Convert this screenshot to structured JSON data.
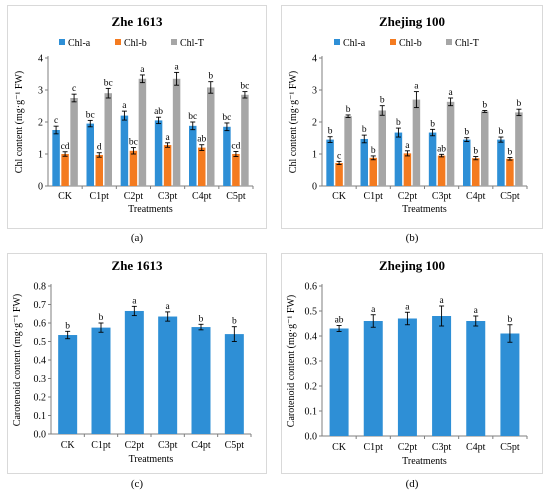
{
  "captions": [
    "(a)",
    "(b)",
    "(c)",
    "(d)"
  ],
  "colors": {
    "chl_a": "#2e8fd6",
    "chl_b": "#f47b20",
    "chl_t": "#a6a6a6",
    "axis": "#7f7f7f",
    "error": "#000000"
  },
  "chart_data": [
    {
      "type": "bar",
      "title": "Zhe 1613",
      "xlabel": "Treatments",
      "ylabel": "Chl content (mg·g⁻¹ FW)",
      "ylim": [
        0,
        4
      ],
      "yticks": [
        "0",
        "1",
        "2",
        "3",
        "4"
      ],
      "grid": false,
      "legend": "top",
      "categories": [
        "CK",
        "C1pt",
        "C2pt",
        "C3pt",
        "C4pt",
        "C5pt"
      ],
      "series": [
        {
          "name": "Chl-a",
          "values": [
            1.75,
            1.95,
            2.2,
            2.05,
            1.88,
            1.85
          ],
          "errors": [
            0.12,
            0.1,
            0.14,
            0.1,
            0.12,
            0.12
          ],
          "labels": [
            "c",
            "bc",
            "a",
            "ab",
            "bc",
            "bc"
          ]
        },
        {
          "name": "Chl-b",
          "values": [
            1.0,
            0.97,
            1.1,
            1.28,
            1.2,
            1.0
          ],
          "errors": [
            0.07,
            0.07,
            0.1,
            0.07,
            0.09,
            0.08
          ],
          "labels": [
            "cd",
            "d",
            "bc",
            "a",
            "ab",
            "cd"
          ]
        },
        {
          "name": "Chl-T",
          "values": [
            2.75,
            2.9,
            3.35,
            3.35,
            3.08,
            2.85
          ],
          "errors": [
            0.12,
            0.15,
            0.12,
            0.2,
            0.18,
            0.1
          ],
          "labels": [
            "c",
            "bc",
            "a",
            "a",
            "b",
            "bc"
          ]
        }
      ]
    },
    {
      "type": "bar",
      "title": "Zhejing 100",
      "xlabel": "Treatments",
      "ylabel": "Chl content (mg·g⁻¹ FW)",
      "ylim": [
        0,
        4
      ],
      "yticks": [
        "0",
        "1",
        "2",
        "3",
        "4"
      ],
      "grid": false,
      "legend": "top",
      "categories": [
        "CK",
        "C1pt",
        "C2pt",
        "C3pt",
        "C4pt",
        "C5pt"
      ],
      "series": [
        {
          "name": "Chl-a",
          "values": [
            1.45,
            1.47,
            1.67,
            1.67,
            1.45,
            1.45
          ],
          "errors": [
            0.09,
            0.12,
            0.14,
            0.1,
            0.06,
            0.08
          ],
          "labels": [
            "b",
            "b",
            "b",
            "b",
            "b",
            "b"
          ]
        },
        {
          "name": "Chl-b",
          "values": [
            0.72,
            0.88,
            1.02,
            0.95,
            0.87,
            0.85
          ],
          "errors": [
            0.05,
            0.06,
            0.08,
            0.04,
            0.05,
            0.04
          ],
          "labels": [
            "c",
            "b",
            "a",
            "ab",
            "b",
            "b"
          ]
        },
        {
          "name": "Chl-T",
          "values": [
            2.18,
            2.36,
            2.7,
            2.63,
            2.33,
            2.3
          ],
          "errors": [
            0.04,
            0.15,
            0.25,
            0.12,
            0.03,
            0.1
          ],
          "labels": [
            "b",
            "b",
            "a",
            "a",
            "b",
            "b"
          ]
        }
      ]
    },
    {
      "type": "bar",
      "title": "Zhe 1613",
      "xlabel": "Treatments",
      "ylabel": "Carotenoid content (mg·g⁻¹ FW)",
      "ylim": [
        0,
        0.8
      ],
      "yticks": [
        "0.0",
        "0.1",
        "0.2",
        "0.3",
        "0.4",
        "0.5",
        "0.6",
        "0.7",
        "0.8"
      ],
      "grid": false,
      "categories": [
        "CK",
        "C1pt",
        "C2pt",
        "C3pt",
        "C4pt",
        "C5pt"
      ],
      "series": [
        {
          "values": [
            0.535,
            0.575,
            0.665,
            0.635,
            0.578,
            0.54
          ],
          "errors": [
            0.02,
            0.025,
            0.025,
            0.025,
            0.015,
            0.04
          ],
          "labels": [
            "b",
            "b",
            "a",
            "a",
            "b",
            "b"
          ]
        }
      ]
    },
    {
      "type": "bar",
      "title": "Zhejing 100",
      "xlabel": "Treatments",
      "ylabel": "Carotenoid content (mg·g⁻¹ FW)",
      "ylim": [
        0,
        0.6
      ],
      "yticks": [
        "0.0",
        "0.1",
        "0.2",
        "0.3",
        "0.4",
        "0.5",
        "0.6"
      ],
      "grid": false,
      "categories": [
        "CK",
        "C1pt",
        "C2pt",
        "C3pt",
        "C4pt",
        "C5pt"
      ],
      "series": [
        {
          "values": [
            0.43,
            0.46,
            0.47,
            0.48,
            0.46,
            0.41
          ],
          "errors": [
            0.012,
            0.025,
            0.025,
            0.04,
            0.02,
            0.035
          ],
          "labels": [
            "ab",
            "a",
            "a",
            "a",
            "a",
            "b"
          ]
        }
      ]
    }
  ]
}
